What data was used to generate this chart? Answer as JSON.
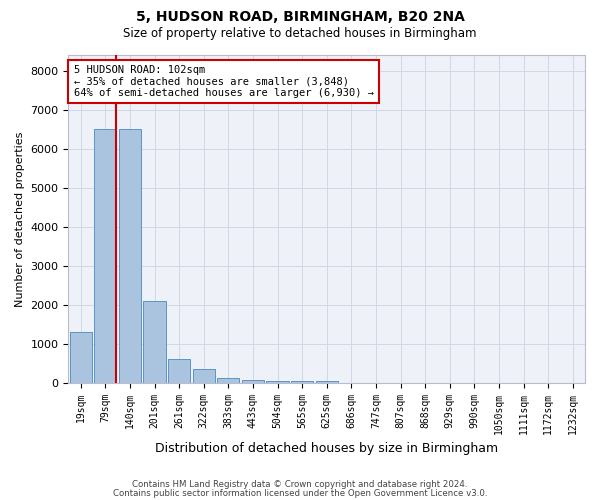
{
  "title": "5, HUDSON ROAD, BIRMINGHAM, B20 2NA",
  "subtitle": "Size of property relative to detached houses in Birmingham",
  "xlabel": "Distribution of detached houses by size in Birmingham",
  "ylabel": "Number of detached properties",
  "categories": [
    "19sqm",
    "79sqm",
    "140sqm",
    "201sqm",
    "261sqm",
    "322sqm",
    "383sqm",
    "443sqm",
    "504sqm",
    "565sqm",
    "625sqm",
    "686sqm",
    "747sqm",
    "807sqm",
    "868sqm",
    "929sqm",
    "990sqm",
    "1050sqm",
    "1111sqm",
    "1172sqm",
    "1232sqm"
  ],
  "values": [
    1300,
    6500,
    6500,
    2100,
    600,
    350,
    120,
    70,
    50,
    50,
    50,
    0,
    0,
    0,
    0,
    0,
    0,
    0,
    0,
    0,
    0
  ],
  "bar_color": "#aac4e0",
  "bar_edge_color": "#5a95c8",
  "annotation_text": "5 HUDSON ROAD: 102sqm\n← 35% of detached houses are smaller (3,848)\n64% of semi-detached houses are larger (6,930) →",
  "annotation_box_color": "#ffffff",
  "annotation_box_edge_color": "#cc0000",
  "vline_color": "#cc0000",
  "ylim": [
    0,
    8400
  ],
  "yticks": [
    0,
    1000,
    2000,
    3000,
    4000,
    5000,
    6000,
    7000,
    8000
  ],
  "grid_color": "#d0d8e8",
  "background_color": "#eef2f8",
  "footer_line1": "Contains HM Land Registry data © Crown copyright and database right 2024.",
  "footer_line2": "Contains public sector information licensed under the Open Government Licence v3.0."
}
